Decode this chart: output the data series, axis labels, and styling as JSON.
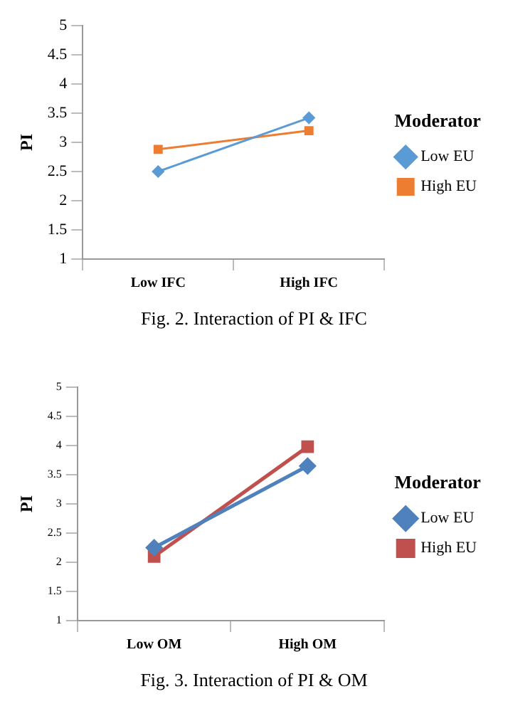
{
  "chart_data": [
    {
      "type": "line",
      "categories": [
        "Low IFC",
        "High IFC"
      ],
      "ylabel": "PI",
      "ylim": [
        1,
        5
      ],
      "yticks": [
        1,
        1.5,
        2,
        2.5,
        3,
        3.5,
        4,
        4.5,
        5
      ],
      "grid": false,
      "legend": "right",
      "legend_title": "Moderator",
      "annotations": [
        "Fig. 2. Interaction of PI & IFC"
      ],
      "series": [
        {
          "name": "Low EU",
          "color": "#5b9bd5",
          "values": [
            2.5,
            3.42
          ],
          "marker": "diamond"
        },
        {
          "name": "High EU",
          "color": "#ed7d31",
          "values": [
            2.88,
            3.2
          ],
          "marker": "square"
        }
      ]
    },
    {
      "type": "line",
      "categories": [
        "Low OM",
        "High OM"
      ],
      "ylabel": "PI",
      "ylim": [
        1,
        5
      ],
      "yticks": [
        1,
        1.5,
        2,
        2.5,
        3,
        3.5,
        4,
        4.5,
        5
      ],
      "grid": false,
      "legend": "right",
      "legend_title": "Moderator",
      "annotations": [
        "Fig. 3. Interaction of PI & OM"
      ],
      "series": [
        {
          "name": "Low EU",
          "color": "#4f81bd",
          "values": [
            2.25,
            3.65
          ],
          "marker": "diamond"
        },
        {
          "name": "High EU",
          "color": "#c0504d",
          "values": [
            2.1,
            3.98
          ],
          "marker": "square"
        }
      ]
    }
  ]
}
